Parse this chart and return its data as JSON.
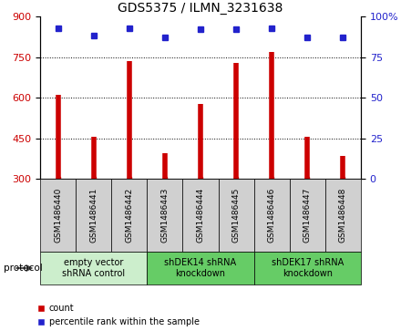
{
  "title": "GDS5375 / ILMN_3231638",
  "categories": [
    "GSM1486440",
    "GSM1486441",
    "GSM1486442",
    "GSM1486443",
    "GSM1486444",
    "GSM1486445",
    "GSM1486446",
    "GSM1486447",
    "GSM1486448"
  ],
  "counts": [
    610,
    455,
    735,
    395,
    575,
    730,
    770,
    455,
    385
  ],
  "percentiles": [
    93,
    88,
    93,
    87,
    92,
    92,
    93,
    87,
    87
  ],
  "ylim_left": [
    300,
    900
  ],
  "ylim_right": [
    0,
    100
  ],
  "yticks_left": [
    300,
    450,
    600,
    750,
    900
  ],
  "yticks_right": [
    0,
    25,
    50,
    75,
    100
  ],
  "bar_color": "#cc0000",
  "scatter_color": "#2222cc",
  "groups": [
    {
      "label": "empty vector\nshRNA control",
      "start": 0,
      "end": 3,
      "color": "#cceecc"
    },
    {
      "label": "shDEK14 shRNA\nknockdown",
      "start": 3,
      "end": 6,
      "color": "#66cc66"
    },
    {
      "label": "shDEK17 shRNA\nknockdown",
      "start": 6,
      "end": 9,
      "color": "#66cc66"
    }
  ],
  "protocol_label": "protocol",
  "legend_count_label": "count",
  "legend_percentile_label": "percentile rank within the sample",
  "title_fontsize": 10,
  "tick_label_color_left": "#cc0000",
  "tick_label_color_right": "#2222cc",
  "bar_bottom": 300,
  "sample_box_color": "#d0d0d0",
  "grid_yticks": [
    450,
    600,
    750
  ]
}
